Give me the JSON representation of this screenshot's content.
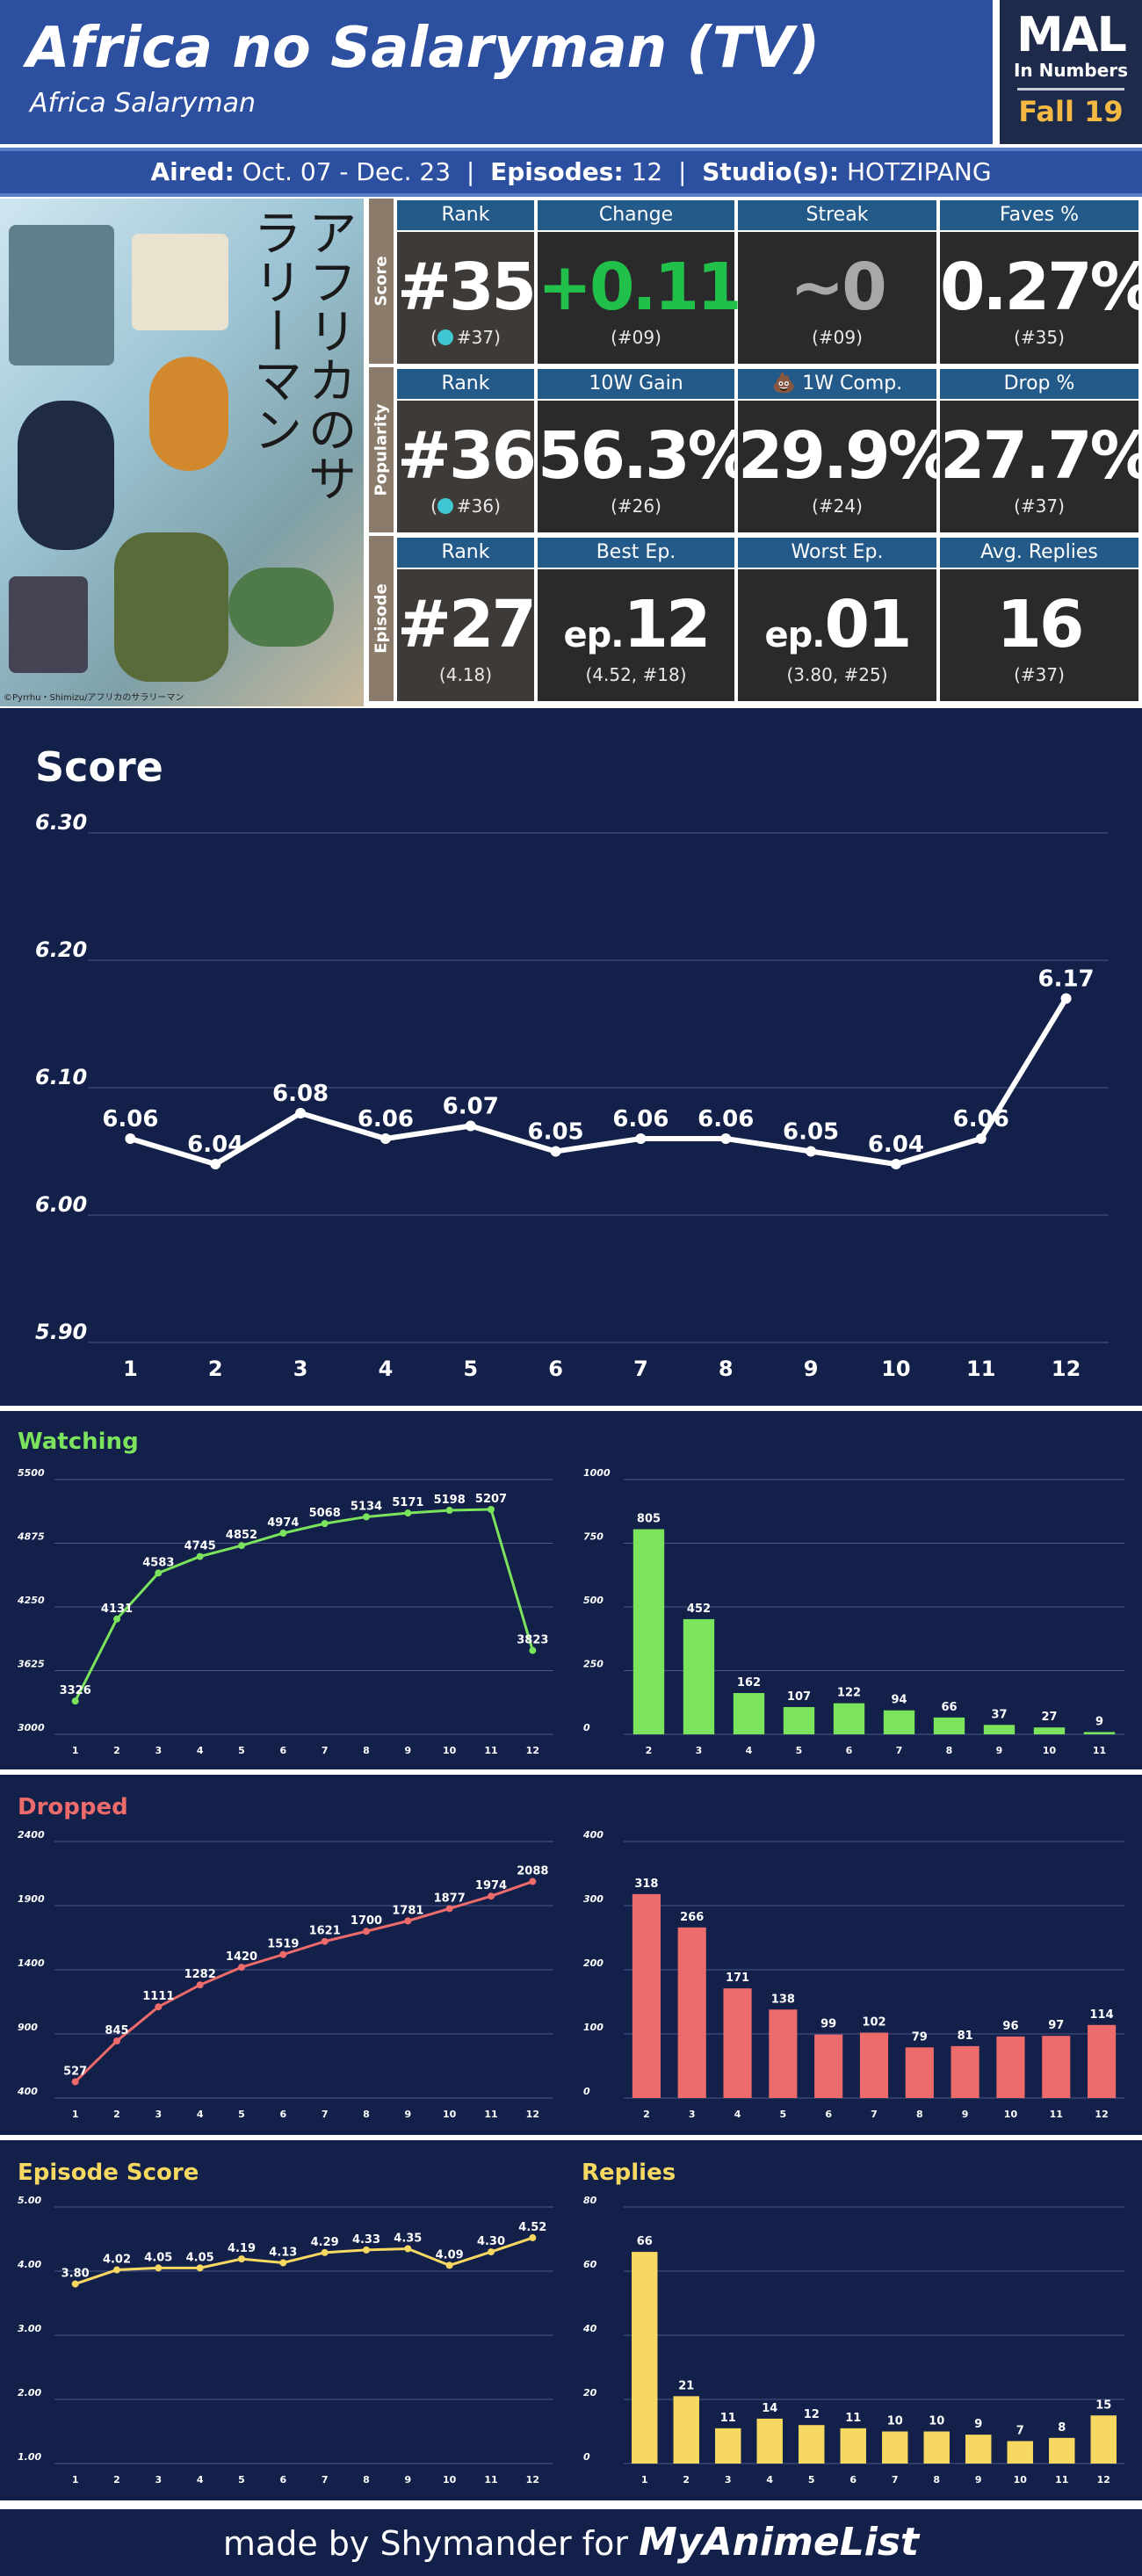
{
  "header": {
    "title": "Africa no Salaryman (TV)",
    "subtitle": "Africa Salaryman",
    "logo_main": "MAL",
    "logo_sub": "In Numbers",
    "logo_season": "Fall 19"
  },
  "aired": {
    "aired_label": "Aired:",
    "aired_value": "Oct. 07 - Dec. 23",
    "episodes_label": "Episodes:",
    "episodes_value": "12",
    "studio_label": "Studio(s):",
    "studio_value": "HOTZIPANG"
  },
  "cover": {
    "title_jp": "アフリカのサラリーマン",
    "copyright": "©Pyrrhu・Shimizu/アフリカのサラリーマン"
  },
  "stats": {
    "score": {
      "label": "Score",
      "cells": [
        {
          "head": "Rank",
          "value": "#35",
          "sub": "#37",
          "badge": "up-arrow-icon"
        },
        {
          "head": "Change",
          "value": "+0.11",
          "sub": "(#09)"
        },
        {
          "head": "Streak",
          "value": "~0",
          "sub": "(#09)"
        },
        {
          "head": "Faves %",
          "value": "0.27%",
          "sub": "(#35)"
        }
      ]
    },
    "popularity": {
      "label": "Popularity",
      "cells": [
        {
          "head": "Rank",
          "value": "#36",
          "sub": "#36",
          "badge": "right-arrow-icon"
        },
        {
          "head": "10W Gain",
          "value": "56.3%",
          "sub": "(#26)"
        },
        {
          "head": "1W Comp.",
          "value": "29.9%",
          "sub": "(#24)",
          "head_icon": "poop-icon"
        },
        {
          "head": "Drop %",
          "value": "27.7%",
          "sub": "(#37)"
        }
      ]
    },
    "episode": {
      "label": "Episode",
      "cells": [
        {
          "head": "Rank",
          "value": "#27",
          "sub": "(4.18)"
        },
        {
          "head": "Best Ep.",
          "prefix": "ep.",
          "value": "12",
          "sub": "(4.52, #18)"
        },
        {
          "head": "Worst Ep.",
          "prefix": "ep.",
          "value": "01",
          "sub": "(3.80, #25)"
        },
        {
          "head": "Avg. Replies",
          "value": "16",
          "sub": "(#37)"
        }
      ]
    }
  },
  "chart_data": [
    {
      "id": "score",
      "type": "line",
      "title": "Score",
      "x": [
        "1",
        "2",
        "3",
        "4",
        "5",
        "6",
        "7",
        "8",
        "9",
        "10",
        "11",
        "12"
      ],
      "values": [
        6.06,
        6.04,
        6.08,
        6.06,
        6.07,
        6.05,
        6.06,
        6.06,
        6.05,
        6.04,
        6.06,
        6.17
      ],
      "labels": [
        "6.06",
        "6.04",
        "6.08",
        "6.06",
        "6.07",
        "6.05",
        "6.06",
        "6.06",
        "6.05",
        "6.04",
        "6.06",
        "6.17"
      ],
      "yticks": [
        "6.30",
        "6.20",
        "6.10",
        "6.00",
        "5.90"
      ],
      "ylim": [
        5.9,
        6.3
      ],
      "color": "#ffffff",
      "grid": true
    },
    {
      "id": "watching-line",
      "type": "line",
      "title": "Watching",
      "x": [
        "1",
        "2",
        "3",
        "4",
        "5",
        "6",
        "7",
        "8",
        "9",
        "10",
        "11",
        "12"
      ],
      "values": [
        3326,
        4131,
        4583,
        4745,
        4852,
        4974,
        5068,
        5134,
        5171,
        5198,
        5207,
        3823
      ],
      "labels": [
        "3326",
        "4131",
        "4583",
        "4745",
        "4852",
        "4974",
        "5068",
        "5134",
        "5171",
        "5198",
        "5207",
        "3823"
      ],
      "yticks": [
        "5500",
        "4875",
        "4250",
        "3625",
        "3000"
      ],
      "ylim": [
        3000,
        5500
      ],
      "color": "#7be35c",
      "grid": true
    },
    {
      "id": "watching-bar",
      "type": "bar",
      "categories": [
        "2",
        "3",
        "4",
        "5",
        "6",
        "7",
        "8",
        "9",
        "10",
        "11"
      ],
      "values": [
        805,
        452,
        162,
        107,
        122,
        94,
        66,
        37,
        27,
        9
      ],
      "labels": [
        "805",
        "452",
        "162",
        "107",
        "122",
        "94",
        "66",
        "37",
        "27",
        "9"
      ],
      "yticks": [
        "1000",
        "750",
        "500",
        "250",
        "0"
      ],
      "ylim": [
        0,
        1000
      ],
      "color": "#7be35c",
      "grid": true
    },
    {
      "id": "dropped-line",
      "type": "line",
      "title": "Dropped",
      "x": [
        "1",
        "2",
        "3",
        "4",
        "5",
        "6",
        "7",
        "8",
        "9",
        "10",
        "11",
        "12"
      ],
      "values": [
        527,
        845,
        1111,
        1282,
        1420,
        1519,
        1621,
        1700,
        1781,
        1877,
        1974,
        2088
      ],
      "labels": [
        "527",
        "845",
        "1111",
        "1282",
        "1420",
        "1519",
        "1621",
        "1700",
        "1781",
        "1877",
        "1974",
        "2088"
      ],
      "yticks": [
        "2400",
        "1900",
        "1400",
        "900",
        "400"
      ],
      "ylim": [
        400,
        2400
      ],
      "color": "#ee6b6b",
      "grid": true
    },
    {
      "id": "dropped-bar",
      "type": "bar",
      "categories": [
        "2",
        "3",
        "4",
        "5",
        "6",
        "7",
        "8",
        "9",
        "10",
        "11",
        "12"
      ],
      "values": [
        318,
        266,
        171,
        138,
        99,
        102,
        79,
        81,
        96,
        97,
        114
      ],
      "labels": [
        "318",
        "266",
        "171",
        "138",
        "99",
        "102",
        "79",
        "81",
        "96",
        "97",
        "114"
      ],
      "yticks": [
        "400",
        "300",
        "200",
        "100",
        "0"
      ],
      "ylim": [
        0,
        400
      ],
      "color": "#ee6b6b",
      "grid": true
    },
    {
      "id": "episode-score-line",
      "type": "line",
      "title": "Episode Score",
      "x": [
        "1",
        "2",
        "3",
        "4",
        "5",
        "6",
        "7",
        "8",
        "9",
        "10",
        "11",
        "12"
      ],
      "values": [
        3.8,
        4.02,
        4.05,
        4.05,
        4.19,
        4.13,
        4.29,
        4.33,
        4.35,
        4.09,
        4.3,
        4.52
      ],
      "labels": [
        "3.80",
        "4.02",
        "4.05",
        "4.05",
        "4.19",
        "4.13",
        "4.29",
        "4.33",
        "4.35",
        "4.09",
        "4.30",
        "4.52"
      ],
      "yticks": [
        "5.00",
        "4.00",
        "3.00",
        "2.00",
        "1.00"
      ],
      "ylim": [
        1,
        5
      ],
      "color": "#f7d861",
      "grid": true
    },
    {
      "id": "replies-bar",
      "type": "bar",
      "title": "Replies",
      "categories": [
        "1",
        "2",
        "3",
        "4",
        "5",
        "6",
        "7",
        "8",
        "9",
        "10",
        "11",
        "12"
      ],
      "values": [
        66,
        21,
        11,
        14,
        12,
        11,
        10,
        10,
        9,
        7,
        8,
        15
      ],
      "labels": [
        "66",
        "21",
        "11",
        "14",
        "12",
        "11",
        "10",
        "10",
        "9",
        "7",
        "8",
        "15"
      ],
      "yticks": [
        "80",
        "60",
        "40",
        "20",
        "0"
      ],
      "ylim": [
        0,
        80
      ],
      "color": "#f7d861",
      "grid": true
    }
  ],
  "footer": {
    "text": "made by Shymander for",
    "brand": "MyAnimeList"
  },
  "colors": {
    "header_blue": "#2c4fa0",
    "panel_navy": "#13204a",
    "watching": "#7be35c",
    "dropped": "#ee6b6b",
    "episode": "#f7d861"
  }
}
